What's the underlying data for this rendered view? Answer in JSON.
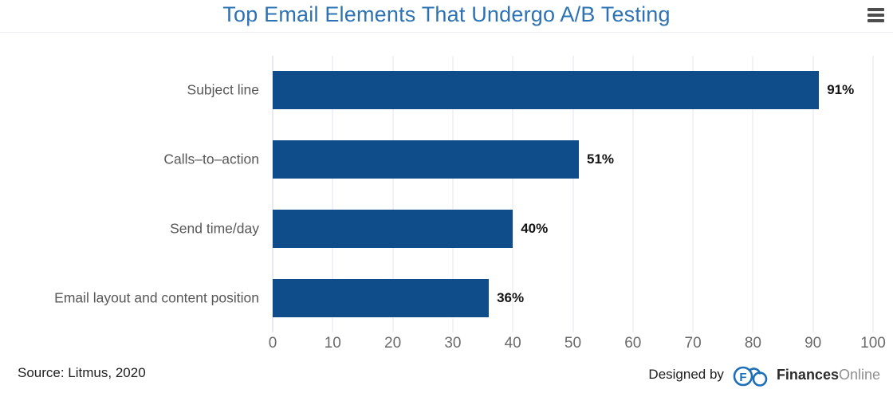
{
  "header": {
    "menu_icon": "hamburger-icon"
  },
  "chart_data": {
    "type": "bar",
    "orientation": "horizontal",
    "title": "Top Email Elements That Undergo A/B Testing",
    "categories": [
      "Subject line",
      "Calls–to–action",
      "Send time/day",
      "Email layout and content position"
    ],
    "values": [
      91,
      51,
      40,
      36
    ],
    "value_labels": [
      "91%",
      "51%",
      "40%",
      "36%"
    ],
    "xlabel": "",
    "ylabel": "",
    "xlim": [
      0,
      100
    ],
    "xticks": [
      0,
      10,
      20,
      30,
      40,
      50,
      60,
      70,
      80,
      90,
      100
    ],
    "grid": "vertical",
    "legend": "none",
    "bar_color": "#0f4d8a",
    "title_color": "#2d73b4",
    "gridline_color": "#e3e6f0"
  },
  "footer": {
    "source": "Source: Litmus, 2020",
    "designed_by": "Designed by",
    "brand_bold": "Finances",
    "brand_light": "Online",
    "brand_logo": "financesonline-cloud-logo",
    "logo_color": "#1d6fb8"
  }
}
